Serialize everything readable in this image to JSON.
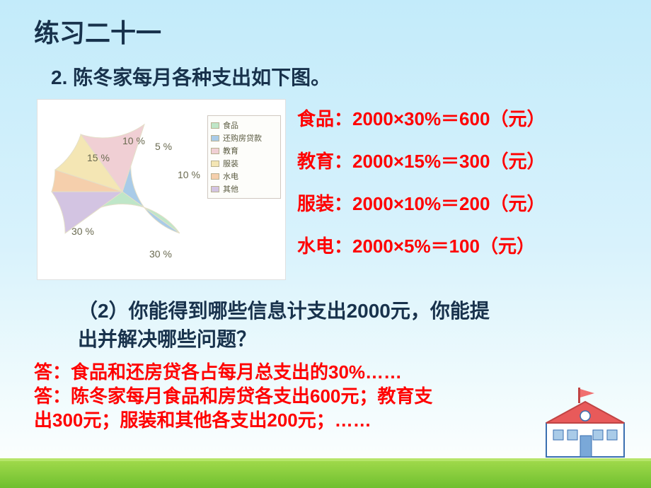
{
  "title": "练习二十一",
  "question": "2. 陈冬家每月各种支出如下图。",
  "pie": {
    "slices": [
      {
        "label": "食品",
        "pct": 30,
        "color": "#bfe6c8"
      },
      {
        "label": "还购房贷款",
        "pct": 30,
        "color": "#a9cbe8"
      },
      {
        "label": "教育",
        "pct": 15,
        "color": "#f0cfd4"
      },
      {
        "label": "服装",
        "pct": 10,
        "color": "#f4e6b4"
      },
      {
        "label": "水电",
        "pct": 5,
        "color": "#f5cfac"
      },
      {
        "label": "其他",
        "pct": 10,
        "color": "#d3c4e2"
      }
    ],
    "border_color": "#e4dfc8",
    "label_color": "#6a6a50"
  },
  "calc": {
    "line1": "食品：2000×30%＝600（元）",
    "line2": "教育：2000×15%＝300（元）",
    "line3": "服装：2000×10%＝200（元）",
    "line4": "水电：2000×5%＝100（元）"
  },
  "q2_line1": "（2）你能得到哪些信息计支出2000元，你能提",
  "q2_line2": "出并解决哪些问题？",
  "ans1": "答：食品和还房贷各占每月总支出的30%……",
  "ans2": "答：陈冬家每月食品和房贷各支出600元；教育支",
  "ans3": "出300元；服装和其他各支出200元；……"
}
